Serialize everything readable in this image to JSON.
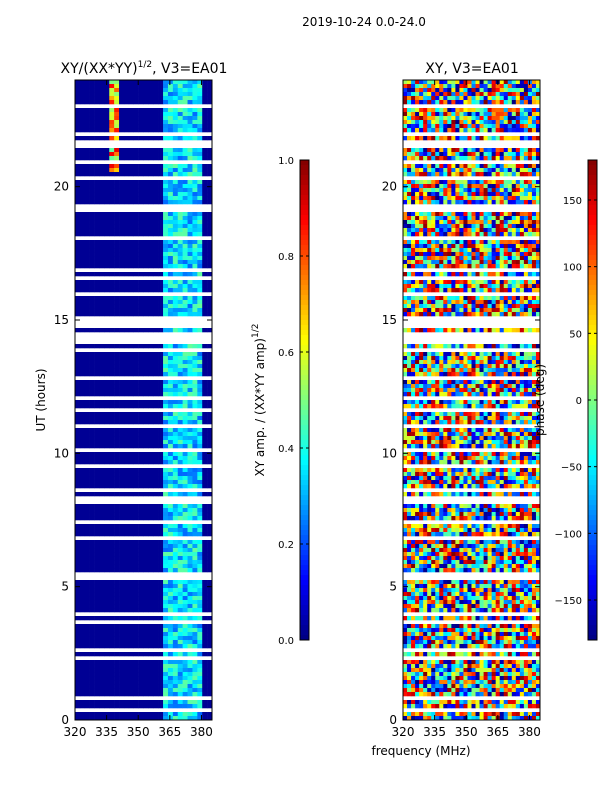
{
  "figure": {
    "suptitle": "2019-10-24 0.0-24.0",
    "shared_xlabel": "frequency (MHz)"
  },
  "chart_data": [
    {
      "type": "heatmap",
      "title": "XY/(XX*YY)",
      "title_sup": "1/2",
      "title_suffix": ", V3=EA01",
      "xlabel": "",
      "ylabel": "UT (hours)",
      "xlim": [
        320,
        385
      ],
      "ylim": [
        0,
        24
      ],
      "xticks": [
        320,
        335,
        350,
        365,
        380
      ],
      "yticks": [
        0,
        5,
        10,
        15,
        20
      ],
      "colorbar": {
        "label": "XY amp. / (XX*YY amp)",
        "label_sup": "1/2",
        "range": [
          0.0,
          1.0
        ],
        "ticks": [
          "0.0",
          "0.2",
          "0.4",
          "0.6",
          "0.8",
          "1.0"
        ],
        "tick_values": [
          0.0,
          0.2,
          0.4,
          0.6,
          0.8,
          1.0
        ],
        "colormap": "jet"
      },
      "features": {
        "low_band_value": 0.02,
        "active_band_MHz": [
          362,
          380
        ],
        "active_band_value": 0.35,
        "spike_freq_MHz": 338,
        "spike_value": 0.9,
        "spike_ut_range_hours": [
          20.5,
          24.0
        ]
      }
    },
    {
      "type": "heatmap",
      "title": "XY, V3=EA01",
      "xlabel": "",
      "ylabel": "",
      "xlim": [
        320,
        385
      ],
      "ylim": [
        0,
        24
      ],
      "xticks": [
        320,
        335,
        350,
        365,
        380
      ],
      "yticks": [
        0,
        5,
        10,
        15,
        20
      ],
      "colorbar": {
        "label": "phase (deg)",
        "range": [
          -180,
          180
        ],
        "ticks": [
          "−150",
          "−100",
          "−50",
          "0",
          "50",
          "100",
          "150"
        ],
        "tick_values": [
          -150,
          -100,
          -50,
          0,
          50,
          100,
          150
        ],
        "colormap": "jet"
      },
      "features": {
        "value_distribution": "random phase, full range -180 to 180"
      }
    }
  ]
}
